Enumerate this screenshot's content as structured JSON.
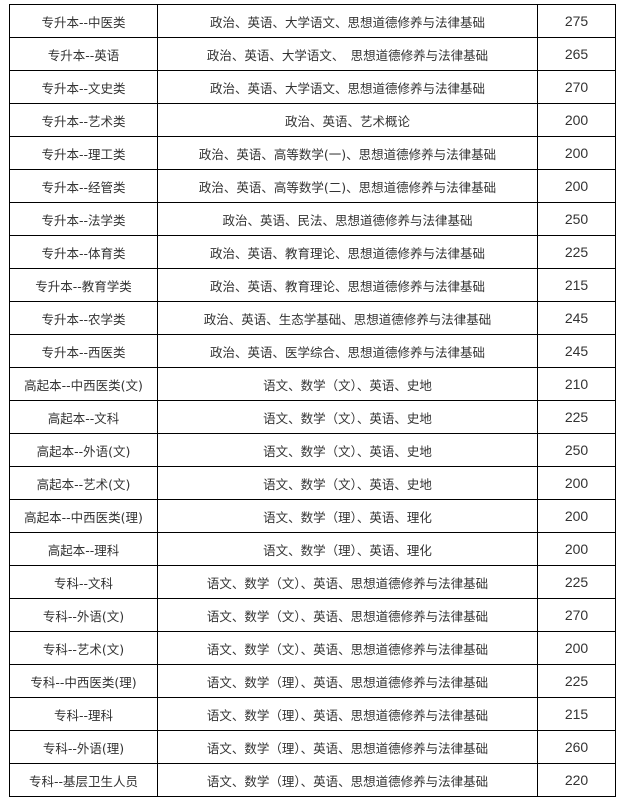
{
  "table": {
    "rows": [
      {
        "category": "专升本--中医类",
        "subjects": "政治、英语、大学语文、思想道德修养与法律基础",
        "score": "275"
      },
      {
        "category": "专升本--英语",
        "subjects": "政治、英语、大学语文、　思想道德修养与法律基础",
        "score": "265"
      },
      {
        "category": "专升本--文史类",
        "subjects": "政治、英语、大学语文、思想道德修养与法律基础",
        "score": "270"
      },
      {
        "category": "专升本--艺术类",
        "subjects": "政治、英语、艺术概论",
        "score": "200"
      },
      {
        "category": "专升本--理工类",
        "subjects": "政治、英语、高等数学(一)、思想道德修养与法律基础",
        "score": "200"
      },
      {
        "category": "专升本--经管类",
        "subjects": "政治、英语、高等数学(二)、思想道德修养与法律基础",
        "score": "200"
      },
      {
        "category": "专升本--法学类",
        "subjects": "政治、英语、民法、思想道德修养与法律基础",
        "score": "250"
      },
      {
        "category": "专升本--体育类",
        "subjects": "政治、英语、教育理论、思想道德修养与法律基础",
        "score": "225"
      },
      {
        "category": "专升本--教育学类",
        "subjects": "政治、英语、教育理论、思想道德修养与法律基础",
        "score": "215"
      },
      {
        "category": "专升本--农学类",
        "subjects": "政治、英语、生态学基础、思想道德修养与法律基础",
        "score": "245"
      },
      {
        "category": "专升本--西医类",
        "subjects": "政治、英语、医学综合、思想道德修养与法律基础",
        "score": "245"
      },
      {
        "category": "高起本--中西医类(文)",
        "subjects": "语文、数学（文）、英语、史地",
        "score": "210"
      },
      {
        "category": "高起本--文科",
        "subjects": "语文、数学（文）、英语、史地",
        "score": "225"
      },
      {
        "category": "高起本--外语(文)",
        "subjects": "语文、数学（文）、英语、史地",
        "score": "250"
      },
      {
        "category": "高起本--艺术(文)",
        "subjects": "语文、数学（文）、英语、史地",
        "score": "200"
      },
      {
        "category": "高起本--中西医类(理)",
        "subjects": "语文、数学（理）、英语、理化",
        "score": "200"
      },
      {
        "category": "高起本--理科",
        "subjects": "语文、数学（理）、英语、理化",
        "score": "200"
      },
      {
        "category": "专科--文科",
        "subjects": "语文、数学（文）、英语、思想道德修养与法律基础",
        "score": "225"
      },
      {
        "category": "专科--外语(文)",
        "subjects": "语文、数学（文）、英语、思想道德修养与法律基础",
        "score": "270"
      },
      {
        "category": "专科--艺术(文)",
        "subjects": "语文、数学（文）、英语、思想道德修养与法律基础",
        "score": "200"
      },
      {
        "category": "专科--中西医类(理)",
        "subjects": "语文、数学（理）、英语、思想道德修养与法律基础",
        "score": "225"
      },
      {
        "category": "专科--理科",
        "subjects": "语文、数学（理）、英语、思想道德修养与法律基础",
        "score": "215"
      },
      {
        "category": "专科--外语(理)",
        "subjects": "语文、数学（理）、英语、思想道德修养与法律基础",
        "score": "260"
      },
      {
        "category": "专科--基层卫生人员",
        "subjects": "语文、数学（理）、英语、思想道德修养与法律基础",
        "score": "220"
      }
    ]
  }
}
